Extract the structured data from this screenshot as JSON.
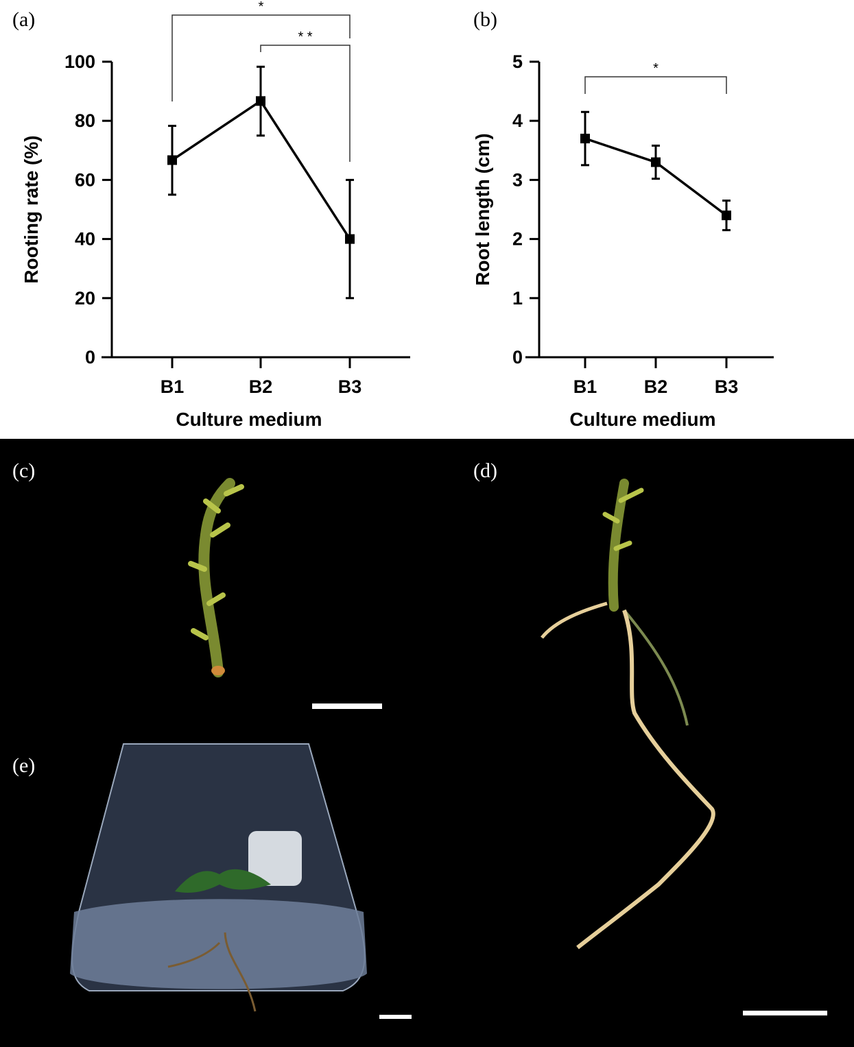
{
  "panels": {
    "a": "(a)",
    "b": "(b)",
    "c": "(c)",
    "d": "(d)",
    "e": "(e)"
  },
  "colors": {
    "line": "#000000",
    "photo_background": "#000000",
    "scale_bar": "#ffffff"
  },
  "chart_data": [
    {
      "type": "line",
      "xlabel": "Culture medium",
      "ylabel": "Rooting rate (%)",
      "categories": [
        "B1",
        "B2",
        "B3"
      ],
      "values": [
        66.7,
        86.7,
        40
      ],
      "error_low": [
        55,
        75,
        20
      ],
      "error_high": [
        78.3,
        98.3,
        60
      ],
      "ylim": [
        0,
        100
      ],
      "yticks": [
        "0",
        "20",
        "40",
        "60",
        "80",
        "100"
      ],
      "grid": false,
      "significance": [
        {
          "from": "B1",
          "to": "B3",
          "label": "*"
        },
        {
          "from": "B2",
          "to": "B3",
          "label": "* *"
        }
      ]
    },
    {
      "type": "line",
      "xlabel": "Culture medium",
      "ylabel": "Root length (cm)",
      "categories": [
        "B1",
        "B2",
        "B3"
      ],
      "values": [
        3.7,
        3.3,
        2.4
      ],
      "error_low": [
        3.25,
        3.02,
        2.15
      ],
      "error_high": [
        4.15,
        3.58,
        2.65
      ],
      "ylim": [
        0,
        5
      ],
      "yticks": [
        "0",
        "1",
        "2",
        "3",
        "4",
        "5"
      ],
      "grid": false,
      "significance": [
        {
          "from": "B1",
          "to": "B3",
          "label": "*"
        }
      ]
    }
  ]
}
